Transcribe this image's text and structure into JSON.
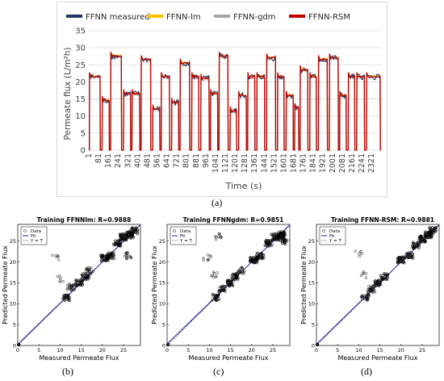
{
  "panels": {
    "a": "(a)",
    "b": "(b)",
    "c": "(c)",
    "d": "(d)"
  },
  "chart_data": [
    {
      "type": "line",
      "title": "",
      "xlabel": "Time (s)",
      "ylabel": "Permeate flux (L/m²h)",
      "ylim": [
        0,
        35
      ],
      "yticks": [
        0,
        5,
        10,
        15,
        20,
        25,
        30,
        35
      ],
      "grid": true,
      "legend_position": "top",
      "x_tick_labels": [
        "1",
        "81",
        "161",
        "241",
        "321",
        "401",
        "481",
        "561",
        "641",
        "721",
        "801",
        "881",
        "961",
        "1041",
        "1121",
        "1201",
        "1281",
        "1361",
        "1441",
        "1521",
        "1601",
        "1681",
        "1761",
        "1841",
        "1921",
        "2001",
        "2081",
        "2161",
        "2241",
        "2321"
      ],
      "x_range": [
        1,
        2400
      ],
      "series": [
        {
          "name": "FFNN measured",
          "color": "#1f3864"
        },
        {
          "name": "FFNN-lm",
          "color": "#ffc000"
        },
        {
          "name": "FFNN-gdm",
          "color": "#a6a6a6"
        },
        {
          "name": "FFNN-RSM",
          "color": "#c00000"
        }
      ],
      "pulses": [
        {
          "x0": 5,
          "x1": 95,
          "y": 21.5
        },
        {
          "x0": 110,
          "x1": 170,
          "y": 14.5
        },
        {
          "x0": 180,
          "x1": 270,
          "y": 27.5
        },
        {
          "x0": 285,
          "x1": 345,
          "y": 16.5
        },
        {
          "x0": 355,
          "x1": 420,
          "y": 16.5
        },
        {
          "x0": 430,
          "x1": 510,
          "y": 26.5
        },
        {
          "x0": 525,
          "x1": 585,
          "y": 12.0
        },
        {
          "x0": 595,
          "x1": 665,
          "y": 21.5
        },
        {
          "x0": 680,
          "x1": 740,
          "y": 14.0
        },
        {
          "x0": 750,
          "x1": 830,
          "y": 25.5
        },
        {
          "x0": 845,
          "x1": 905,
          "y": 21.5
        },
        {
          "x0": 920,
          "x1": 990,
          "y": 21.0
        },
        {
          "x0": 1000,
          "x1": 1060,
          "y": 16.5
        },
        {
          "x0": 1070,
          "x1": 1145,
          "y": 27.5
        },
        {
          "x0": 1160,
          "x1": 1215,
          "y": 11.5
        },
        {
          "x0": 1230,
          "x1": 1295,
          "y": 16.0
        },
        {
          "x0": 1305,
          "x1": 1365,
          "y": 21.5
        },
        {
          "x0": 1380,
          "x1": 1445,
          "y": 21.5
        },
        {
          "x0": 1460,
          "x1": 1535,
          "y": 27.0
        },
        {
          "x0": 1550,
          "x1": 1605,
          "y": 21.5
        },
        {
          "x0": 1620,
          "x1": 1680,
          "y": 16.0
        },
        {
          "x0": 1690,
          "x1": 1725,
          "y": 12.5
        },
        {
          "x0": 1735,
          "x1": 1800,
          "y": 23.5
        },
        {
          "x0": 1815,
          "x1": 1870,
          "y": 21.5
        },
        {
          "x0": 1885,
          "x1": 1960,
          "y": 26.5
        },
        {
          "x0": 1975,
          "x1": 2050,
          "y": 27.0
        },
        {
          "x0": 2060,
          "x1": 2115,
          "y": 16.0
        },
        {
          "x0": 2130,
          "x1": 2185,
          "y": 21.5
        },
        {
          "x0": 2200,
          "x1": 2265,
          "y": 21.5
        },
        {
          "x0": 2280,
          "x1": 2395,
          "y": 21.5
        }
      ]
    },
    {
      "type": "scatter",
      "title": "Training FFNNlm: R=0.9888",
      "xlabel": "Measured Permeate Flux",
      "ylabel": "Predicted Permeate Flux",
      "xlim": [
        0,
        29
      ],
      "ylim": [
        0,
        29
      ],
      "xticks": [
        0,
        5,
        10,
        15,
        20,
        25
      ],
      "yticks": [
        0,
        5,
        10,
        15,
        20,
        25
      ],
      "legend": [
        "Data",
        "Fit",
        "Y = T"
      ],
      "legend_position": "top-left",
      "fit_line": {
        "slope": 0.985,
        "intercept": 0.3
      },
      "clusters": [
        {
          "x": 11.5,
          "y": 11.5,
          "n": 35
        },
        {
          "x": 12.5,
          "y": 14.0,
          "n": 25
        },
        {
          "x": 14.5,
          "y": 15.0,
          "n": 40
        },
        {
          "x": 16.0,
          "y": 16.5,
          "n": 40
        },
        {
          "x": 17.0,
          "y": 18.0,
          "n": 20
        },
        {
          "x": 20.5,
          "y": 21.0,
          "n": 60
        },
        {
          "x": 22.0,
          "y": 21.5,
          "n": 40
        },
        {
          "x": 23.5,
          "y": 24.5,
          "n": 40
        },
        {
          "x": 25.0,
          "y": 26.0,
          "n": 60
        },
        {
          "x": 26.5,
          "y": 26.5,
          "n": 50
        },
        {
          "x": 27.5,
          "y": 27.5,
          "n": 40
        },
        {
          "x": 26.0,
          "y": 21.5,
          "n": 15
        },
        {
          "x": 9.0,
          "y": 21.0,
          "n": 6
        },
        {
          "x": 10.0,
          "y": 16.0,
          "n": 6
        },
        {
          "x": 0.2,
          "y": 0.2,
          "n": 10
        }
      ]
    },
    {
      "type": "scatter",
      "title": "Training FFNNgdm: R=0.9851",
      "xlabel": "Measured Permeate Flux",
      "ylabel": "Predicted Permeate Flux",
      "xlim": [
        0,
        29
      ],
      "ylim": [
        0,
        29
      ],
      "xticks": [
        0,
        5,
        10,
        15,
        20,
        25
      ],
      "yticks": [
        0,
        5,
        10,
        15,
        20,
        25
      ],
      "legend": [
        "Data",
        "Fit",
        "Y = T"
      ],
      "legend_position": "top-left",
      "fit_line": {
        "slope": 0.98,
        "intercept": 0.4
      },
      "clusters": [
        {
          "x": 11.5,
          "y": 11.5,
          "n": 35
        },
        {
          "x": 13.0,
          "y": 13.5,
          "n": 30
        },
        {
          "x": 15.0,
          "y": 15.0,
          "n": 40
        },
        {
          "x": 16.0,
          "y": 16.5,
          "n": 40
        },
        {
          "x": 17.5,
          "y": 18.0,
          "n": 20
        },
        {
          "x": 20.5,
          "y": 20.5,
          "n": 60
        },
        {
          "x": 22.0,
          "y": 21.5,
          "n": 40
        },
        {
          "x": 24.0,
          "y": 24.5,
          "n": 40
        },
        {
          "x": 25.5,
          "y": 26.0,
          "n": 50
        },
        {
          "x": 27.0,
          "y": 26.5,
          "n": 60
        },
        {
          "x": 27.5,
          "y": 25.0,
          "n": 30
        },
        {
          "x": 12.0,
          "y": 26.0,
          "n": 10
        },
        {
          "x": 9.5,
          "y": 21.0,
          "n": 8
        },
        {
          "x": 11.0,
          "y": 17.0,
          "n": 8
        },
        {
          "x": 0.2,
          "y": 0.2,
          "n": 10
        }
      ]
    },
    {
      "type": "scatter",
      "title": "Training FFNN-RSM: R=0.9881",
      "xlabel": "Measured Permeate Flux",
      "ylabel": "Predicted Permeate Flux",
      "xlim": [
        0,
        29
      ],
      "ylim": [
        0,
        29
      ],
      "xticks": [
        0,
        5,
        10,
        15,
        20,
        25
      ],
      "yticks": [
        0,
        5,
        10,
        15,
        20,
        25
      ],
      "legend": [
        "Data",
        "Fit",
        "Y = T"
      ],
      "legend_position": "top-left",
      "fit_line": {
        "slope": 0.985,
        "intercept": 0.3
      },
      "clusters": [
        {
          "x": 11.5,
          "y": 11.5,
          "n": 30
        },
        {
          "x": 13.0,
          "y": 13.5,
          "n": 30
        },
        {
          "x": 14.5,
          "y": 15.0,
          "n": 40
        },
        {
          "x": 16.0,
          "y": 16.5,
          "n": 35
        },
        {
          "x": 20.0,
          "y": 20.5,
          "n": 50
        },
        {
          "x": 22.0,
          "y": 21.5,
          "n": 35
        },
        {
          "x": 23.5,
          "y": 24.0,
          "n": 40
        },
        {
          "x": 25.0,
          "y": 25.5,
          "n": 50
        },
        {
          "x": 26.5,
          "y": 26.5,
          "n": 50
        },
        {
          "x": 27.5,
          "y": 27.5,
          "n": 40
        },
        {
          "x": 10.0,
          "y": 22.0,
          "n": 6
        },
        {
          "x": 11.0,
          "y": 17.0,
          "n": 6
        },
        {
          "x": 0.2,
          "y": 0.2,
          "n": 10
        }
      ]
    }
  ]
}
